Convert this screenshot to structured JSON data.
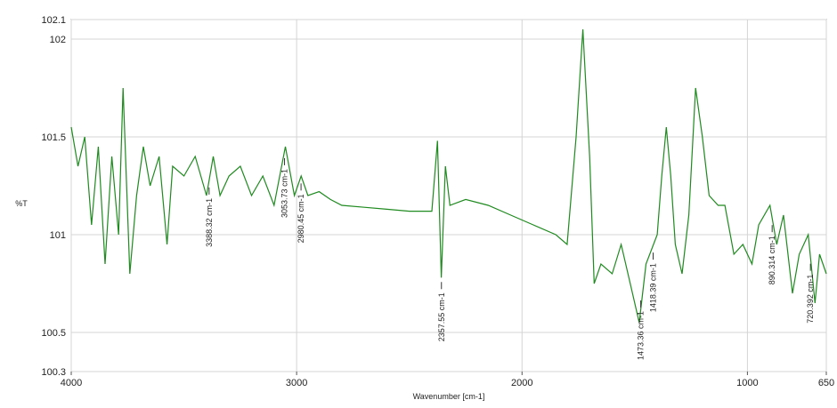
{
  "chart_data": {
    "type": "line",
    "y_label": "%T",
    "x_label": "Wavenumber [cm-1]",
    "xlim": [
      4000,
      650
    ],
    "ylim": [
      100.3,
      102.1
    ],
    "xticks": [
      4000,
      3000,
      2000,
      1000,
      650
    ],
    "yticks": [
      100.3,
      100.5,
      101,
      101.5,
      102,
      102.1
    ],
    "grid": true,
    "x": [
      4000,
      3970,
      3940,
      3910,
      3880,
      3850,
      3820,
      3790,
      3770,
      3740,
      3710,
      3680,
      3650,
      3610,
      3575,
      3550,
      3500,
      3450,
      3400,
      3370,
      3340,
      3300,
      3250,
      3200,
      3150,
      3100,
      3050,
      3010,
      2980,
      2950,
      2900,
      2850,
      2800,
      2700,
      2600,
      2500,
      2400,
      2375,
      2358,
      2340,
      2320,
      2250,
      2150,
      2050,
      1950,
      1850,
      1800,
      1760,
      1730,
      1700,
      1680,
      1650,
      1600,
      1560,
      1520,
      1480,
      1450,
      1400,
      1380,
      1360,
      1340,
      1320,
      1290,
      1260,
      1230,
      1200,
      1170,
      1130,
      1100,
      1060,
      1020,
      980,
      950,
      900,
      870,
      840,
      800,
      770,
      730,
      700,
      680,
      650
    ],
    "series": [
      {
        "name": "%T",
        "color": "#1f8a1f",
        "values": [
          101.55,
          101.35,
          101.5,
          101.05,
          101.45,
          100.85,
          101.4,
          101.0,
          101.75,
          100.8,
          101.2,
          101.45,
          101.25,
          101.4,
          100.95,
          101.35,
          101.3,
          101.4,
          101.2,
          101.4,
          101.2,
          101.3,
          101.35,
          101.2,
          101.3,
          101.15,
          101.45,
          101.2,
          101.3,
          101.2,
          101.22,
          101.18,
          101.15,
          101.14,
          101.13,
          101.12,
          101.12,
          101.48,
          100.78,
          101.35,
          101.15,
          101.18,
          101.15,
          101.1,
          101.05,
          101.0,
          100.95,
          101.5,
          102.05,
          101.4,
          100.75,
          100.85,
          100.8,
          100.95,
          100.75,
          100.55,
          100.85,
          101.0,
          101.3,
          101.55,
          101.3,
          100.95,
          100.8,
          101.1,
          101.75,
          101.5,
          101.2,
          101.15,
          101.15,
          100.9,
          100.95,
          100.85,
          101.05,
          101.15,
          100.95,
          101.1,
          100.7,
          100.9,
          101.0,
          100.65,
          100.9,
          100.8
        ]
      }
    ],
    "annotations": [
      {
        "x": 3388.32,
        "label": "3388.32 cm-1"
      },
      {
        "x": 3053.73,
        "label": "3053.73 cm-1"
      },
      {
        "x": 2980.45,
        "label": "2980.45 cm-1"
      },
      {
        "x": 2357.55,
        "label": "2357.55 cm-1"
      },
      {
        "x": 1473.36,
        "label": "1473.36 cm-1"
      },
      {
        "x": 1418.39,
        "label": "1418.39 cm-1"
      },
      {
        "x": 890.314,
        "label": "890.314 cm-1"
      },
      {
        "x": 720.392,
        "label": "720.392 cm-1"
      }
    ]
  }
}
